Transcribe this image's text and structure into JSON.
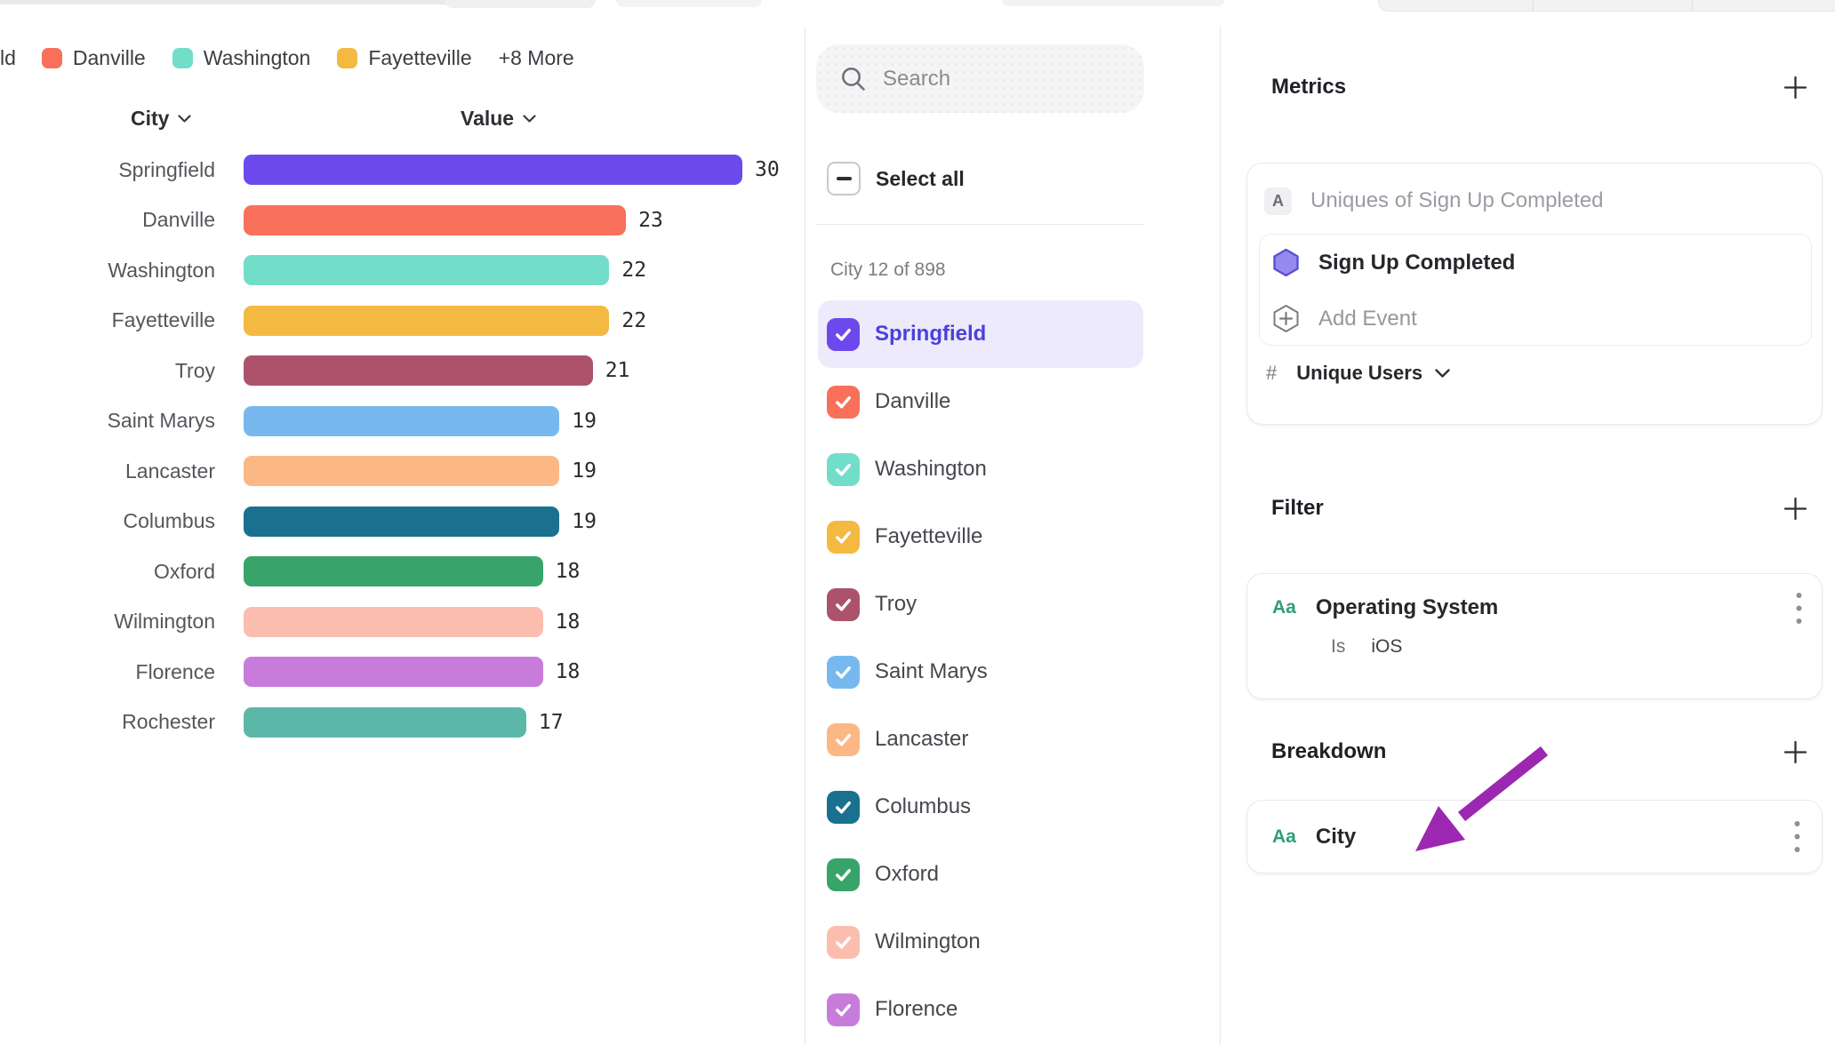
{
  "legend": {
    "clipped_item": "ld",
    "items": [
      {
        "label": "Danville",
        "color": "#F8705A"
      },
      {
        "label": "Washington",
        "color": "#72DECA"
      },
      {
        "label": "Fayetteville",
        "color": "#F3B941"
      }
    ],
    "more_label": "+8 More"
  },
  "chart_data": {
    "type": "bar",
    "orientation": "horizontal",
    "title": "",
    "xlabel": "Value",
    "ylabel": "City",
    "col_header_category": "City",
    "col_header_value": "Value",
    "xlim": [
      0,
      30
    ],
    "grid": false,
    "categories": [
      "Springfield",
      "Danville",
      "Washington",
      "Fayetteville",
      "Troy",
      "Saint Marys",
      "Lancaster",
      "Columbus",
      "Oxford",
      "Wilmington",
      "Florence",
      "Rochester"
    ],
    "values": [
      30,
      23,
      22,
      22,
      21,
      19,
      19,
      19,
      18,
      18,
      18,
      17
    ],
    "colors": [
      "#6C49EC",
      "#F8705A",
      "#72DECA",
      "#F3B941",
      "#AC536B",
      "#77B9EE",
      "#FBB884",
      "#19708F",
      "#38A46A",
      "#FBBEAE",
      "#C77CDB",
      "#5BB8A9"
    ]
  },
  "city_selector": {
    "search_placeholder": "Search",
    "select_all_label": "Select all",
    "count_label": "City 12 of 898",
    "items": [
      {
        "label": "Springfield",
        "color": "#6C49EC",
        "checked": true,
        "highlighted": true
      },
      {
        "label": "Danville",
        "color": "#F8705A",
        "checked": true,
        "highlighted": false
      },
      {
        "label": "Washington",
        "color": "#72DECA",
        "checked": true,
        "highlighted": false
      },
      {
        "label": "Fayetteville",
        "color": "#F3B941",
        "checked": true,
        "highlighted": false
      },
      {
        "label": "Troy",
        "color": "#AC536B",
        "checked": true,
        "highlighted": false
      },
      {
        "label": "Saint Marys",
        "color": "#77B9EE",
        "checked": true,
        "highlighted": false
      },
      {
        "label": "Lancaster",
        "color": "#FBB884",
        "checked": true,
        "highlighted": false
      },
      {
        "label": "Columbus",
        "color": "#19708F",
        "checked": true,
        "highlighted": false
      },
      {
        "label": "Oxford",
        "color": "#38A46A",
        "checked": true,
        "highlighted": false
      },
      {
        "label": "Wilmington",
        "color": "#FBBEAE",
        "checked": true,
        "highlighted": false
      },
      {
        "label": "Florence",
        "color": "#C77CDB",
        "checked": true,
        "highlighted": false
      }
    ]
  },
  "metrics": {
    "title": "Metrics",
    "row_badge": "A",
    "row_label": "Uniques of Sign Up Completed",
    "event_label": "Sign Up Completed",
    "add_event_label": "Add Event",
    "measure_symbol": "#",
    "measure_label": "Unique Users"
  },
  "filter": {
    "title": "Filter",
    "type_badge": "Aa",
    "property_label": "Operating System",
    "operator_label": "Is",
    "value_label": "iOS"
  },
  "breakdown": {
    "title": "Breakdown",
    "type_badge": "Aa",
    "property_label": "City"
  },
  "colors": {
    "accent_purple": "#6C49EC",
    "selected_row_bg": "#EDEAFB",
    "selected_text": "#4C40DB",
    "annotation_arrow": "#9C27B0",
    "badge_green": "#2F9E78",
    "border": "#E9E9EB"
  }
}
